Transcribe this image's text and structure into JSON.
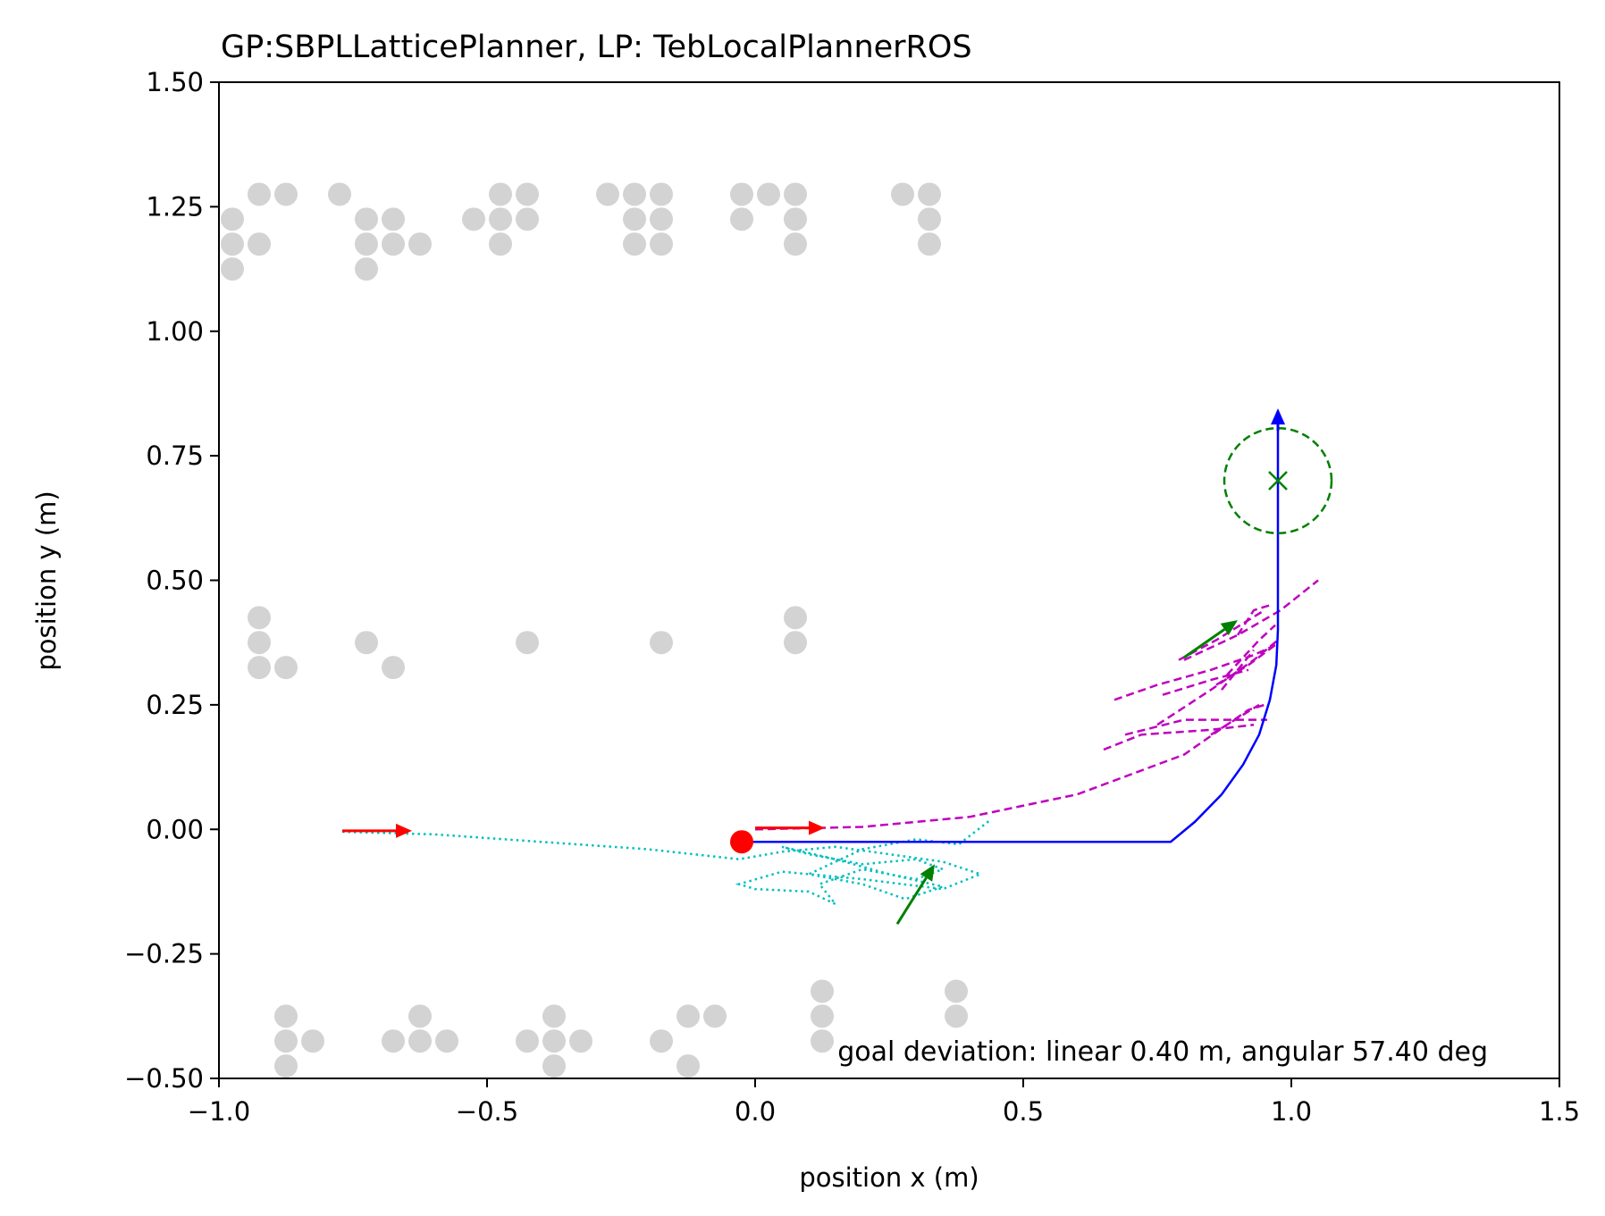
{
  "chart_data": {
    "type": "scatter",
    "title": "GP:SBPLLatticePlanner, LP: TebLocalPlannerROS",
    "xlabel": "position x (m)",
    "ylabel": "position y (m)",
    "xlim": [
      -1.0,
      1.5
    ],
    "ylim": [
      -0.5,
      1.5
    ],
    "xticks": [
      -1.0,
      -0.5,
      0.0,
      0.5,
      1.0,
      1.5
    ],
    "xtick_labels": [
      "−1.0",
      "−0.5",
      "0.0",
      "0.5",
      "1.0",
      "1.5"
    ],
    "yticks": [
      -0.5,
      -0.25,
      0.0,
      0.25,
      0.5,
      0.75,
      1.0,
      1.25,
      1.5
    ],
    "ytick_labels": [
      "−0.50",
      "−0.25",
      "0.00",
      "0.25",
      "0.50",
      "0.75",
      "1.00",
      "1.25",
      "1.50"
    ],
    "grid": false,
    "annotation": "goal deviation: linear 0.40 m, angular 57.40 deg",
    "colors": {
      "obstacles": "#d3d3d3",
      "global_plan": "#0000ff",
      "local_plans": "#bf00bf",
      "trajectory": "#00bfbf",
      "start_arrow": "#ff0000",
      "robot_arrow": "#008000",
      "goal": "#008000",
      "start_point": "#ff0000"
    },
    "obstacles": [
      [
        -0.975,
        1.225
      ],
      [
        -0.925,
        1.275
      ],
      [
        -0.875,
        1.275
      ],
      [
        -0.975,
        1.175
      ],
      [
        -0.925,
        1.175
      ],
      [
        -0.975,
        1.125
      ],
      [
        -0.775,
        1.275
      ],
      [
        -0.725,
        1.225
      ],
      [
        -0.675,
        1.225
      ],
      [
        -0.725,
        1.175
      ],
      [
        -0.675,
        1.175
      ],
      [
        -0.625,
        1.175
      ],
      [
        -0.725,
        1.125
      ],
      [
        -0.525,
        1.225
      ],
      [
        -0.475,
        1.275
      ],
      [
        -0.425,
        1.275
      ],
      [
        -0.475,
        1.225
      ],
      [
        -0.425,
        1.225
      ],
      [
        -0.475,
        1.175
      ],
      [
        -0.275,
        1.275
      ],
      [
        -0.225,
        1.275
      ],
      [
        -0.175,
        1.275
      ],
      [
        -0.225,
        1.225
      ],
      [
        -0.175,
        1.225
      ],
      [
        -0.225,
        1.175
      ],
      [
        -0.175,
        1.175
      ],
      [
        -0.025,
        1.275
      ],
      [
        0.025,
        1.275
      ],
      [
        0.075,
        1.275
      ],
      [
        -0.025,
        1.225
      ],
      [
        0.075,
        1.225
      ],
      [
        0.075,
        1.175
      ],
      [
        0.275,
        1.275
      ],
      [
        0.325,
        1.275
      ],
      [
        0.325,
        1.225
      ],
      [
        0.325,
        1.175
      ],
      [
        -0.925,
        0.425
      ],
      [
        -0.925,
        0.375
      ],
      [
        -0.925,
        0.325
      ],
      [
        -0.875,
        0.325
      ],
      [
        -0.725,
        0.375
      ],
      [
        -0.675,
        0.325
      ],
      [
        -0.425,
        0.375
      ],
      [
        -0.175,
        0.375
      ],
      [
        0.075,
        0.425
      ],
      [
        0.075,
        0.375
      ],
      [
        -0.875,
        -0.375
      ],
      [
        -0.875,
        -0.425
      ],
      [
        -0.825,
        -0.425
      ],
      [
        -0.875,
        -0.475
      ],
      [
        -0.675,
        -0.425
      ],
      [
        -0.625,
        -0.375
      ],
      [
        -0.625,
        -0.425
      ],
      [
        -0.575,
        -0.425
      ],
      [
        -0.425,
        -0.425
      ],
      [
        -0.375,
        -0.375
      ],
      [
        -0.375,
        -0.425
      ],
      [
        -0.325,
        -0.425
      ],
      [
        -0.375,
        -0.475
      ],
      [
        -0.175,
        -0.425
      ],
      [
        -0.125,
        -0.375
      ],
      [
        -0.075,
        -0.375
      ],
      [
        -0.125,
        -0.475
      ],
      [
        0.125,
        -0.325
      ],
      [
        0.125,
        -0.375
      ],
      [
        0.125,
        -0.425
      ],
      [
        0.375,
        -0.325
      ],
      [
        0.375,
        -0.375
      ]
    ],
    "global_plan": [
      [
        -0.025,
        -0.025
      ],
      [
        0.775,
        -0.025
      ],
      [
        0.82,
        0.015
      ],
      [
        0.87,
        0.07
      ],
      [
        0.91,
        0.13
      ],
      [
        0.94,
        0.19
      ],
      [
        0.96,
        0.26
      ],
      [
        0.972,
        0.33
      ],
      [
        0.975,
        0.4
      ],
      [
        0.975,
        0.55
      ],
      [
        0.975,
        0.84
      ]
    ],
    "local_plans": [
      [
        [
          0.0,
          0.0
        ],
        [
          0.2,
          0.005
        ],
        [
          0.4,
          0.025
        ],
        [
          0.6,
          0.07
        ],
        [
          0.8,
          0.15
        ],
        [
          0.92,
          0.24
        ],
        [
          0.95,
          0.25
        ]
      ],
      [
        [
          0.67,
          0.26
        ],
        [
          0.75,
          0.29
        ],
        [
          0.85,
          0.32
        ],
        [
          0.93,
          0.35
        ],
        [
          0.97,
          0.37
        ]
      ],
      [
        [
          0.65,
          0.16
        ],
        [
          0.72,
          0.19
        ],
        [
          0.85,
          0.2
        ],
        [
          0.93,
          0.21
        ]
      ],
      [
        [
          0.69,
          0.19
        ],
        [
          0.8,
          0.22
        ],
        [
          0.9,
          0.22
        ],
        [
          0.955,
          0.22
        ]
      ],
      [
        [
          0.75,
          0.21
        ],
        [
          0.85,
          0.28
        ],
        [
          0.93,
          0.34
        ],
        [
          0.975,
          0.38
        ]
      ],
      [
        [
          0.76,
          0.27
        ],
        [
          0.85,
          0.3
        ],
        [
          0.92,
          0.32
        ]
      ],
      [
        [
          0.79,
          0.34
        ],
        [
          0.86,
          0.38
        ],
        [
          0.92,
          0.42
        ],
        [
          0.95,
          0.44
        ]
      ],
      [
        [
          0.8,
          0.34
        ],
        [
          0.9,
          0.39
        ],
        [
          0.98,
          0.44
        ],
        [
          1.05,
          0.5
        ]
      ],
      [
        [
          0.86,
          0.29
        ],
        [
          0.92,
          0.33
        ],
        [
          0.97,
          0.37
        ]
      ],
      [
        [
          0.87,
          0.28
        ],
        [
          0.93,
          0.36
        ]
      ],
      [
        [
          0.88,
          0.31
        ],
        [
          0.94,
          0.38
        ],
        [
          0.97,
          0.41
        ]
      ],
      [
        [
          0.9,
          0.39
        ],
        [
          0.93,
          0.44
        ],
        [
          0.96,
          0.45
        ]
      ],
      [
        [
          0.85,
          0.19
        ],
        [
          0.91,
          0.23
        ],
        [
          0.94,
          0.25
        ]
      ]
    ],
    "trajectory": [
      [
        -0.77,
        -0.005
      ],
      [
        -0.6,
        -0.01
      ],
      [
        -0.4,
        -0.025
      ],
      [
        -0.2,
        -0.04
      ],
      [
        -0.03,
        -0.06
      ],
      [
        0.05,
        -0.045
      ],
      [
        0.15,
        -0.035
      ],
      [
        0.25,
        -0.05
      ],
      [
        0.35,
        -0.065
      ],
      [
        0.42,
        -0.09
      ],
      [
        0.35,
        -0.12
      ],
      [
        0.2,
        -0.1
      ],
      [
        0.05,
        -0.085
      ],
      [
        -0.03,
        -0.11
      ],
      [
        0.0,
        -0.12
      ],
      [
        0.1,
        -0.125
      ],
      [
        0.15,
        -0.15
      ],
      [
        0.12,
        -0.11
      ],
      [
        0.2,
        -0.08
      ],
      [
        0.3,
        -0.1
      ],
      [
        0.35,
        -0.08
      ],
      [
        0.3,
        -0.06
      ],
      [
        0.2,
        -0.07
      ],
      [
        0.1,
        -0.05
      ],
      [
        0.05,
        -0.035
      ],
      [
        0.15,
        -0.06
      ],
      [
        0.25,
        -0.09
      ],
      [
        0.35,
        -0.115
      ],
      [
        0.28,
        -0.14
      ],
      [
        0.2,
        -0.11
      ],
      [
        0.1,
        -0.09
      ],
      [
        0.2,
        -0.04
      ],
      [
        0.3,
        -0.02
      ],
      [
        0.38,
        -0.03
      ],
      [
        0.44,
        0.02
      ]
    ],
    "arrows": [
      {
        "color": "red",
        "from": [
          -0.77,
          -0.003
        ],
        "to": [
          -0.64,
          -0.003
        ]
      },
      {
        "color": "red",
        "from": [
          0.0,
          0.003
        ],
        "to": [
          0.13,
          0.003
        ]
      },
      {
        "color": "green",
        "from": [
          0.265,
          -0.19
        ],
        "to": [
          0.335,
          -0.07
        ]
      },
      {
        "color": "green",
        "from": [
          0.8,
          0.345
        ],
        "to": [
          0.9,
          0.42
        ]
      },
      {
        "color": "blue",
        "from": [
          0.975,
          0.8
        ],
        "to": [
          0.975,
          0.845
        ]
      }
    ],
    "start_point": [
      -0.025,
      -0.025
    ],
    "goal": {
      "x": 0.975,
      "y": 0.7,
      "radius": 0.1
    }
  }
}
